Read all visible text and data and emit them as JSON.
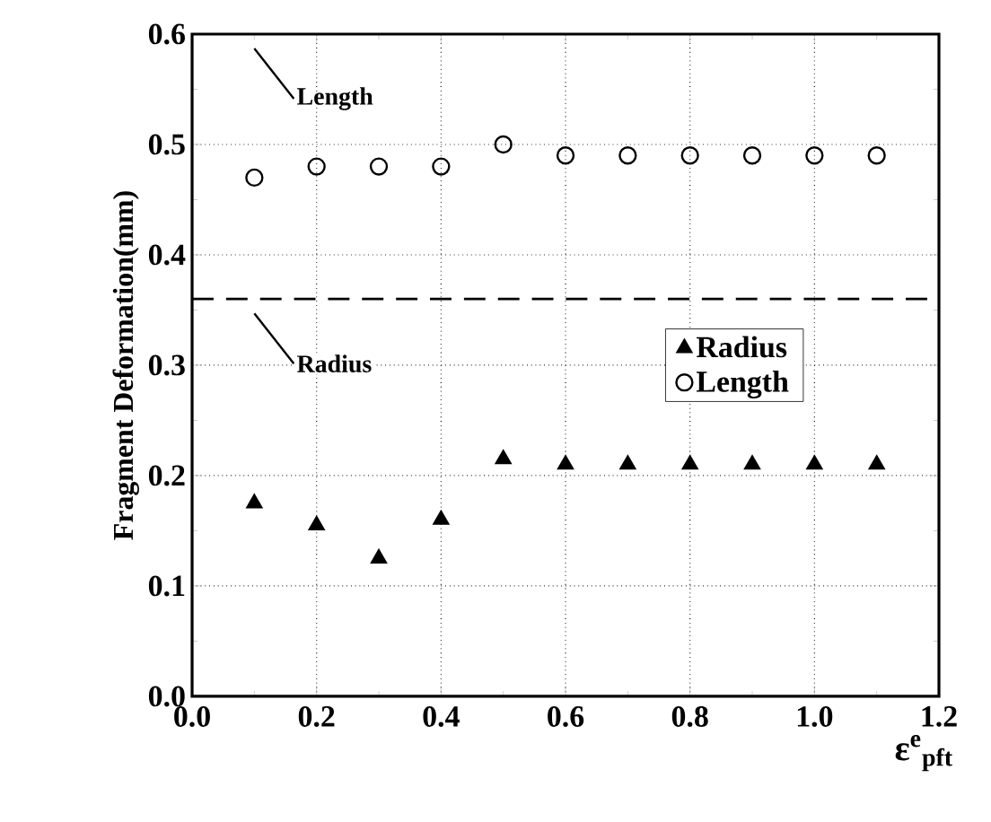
{
  "chart_data": {
    "type": "scatter",
    "xlabel": "ε$^{e}$$_{pft}$",
    "ylabel": "Fragment Deformation(mm)",
    "x": [
      0.1,
      0.2,
      0.3,
      0.4,
      0.5,
      0.6,
      0.7,
      0.8,
      0.9,
      1.0,
      1.1
    ],
    "series": [
      {
        "name": "Radius",
        "color": "#000000",
        "marker": "triangle",
        "values": [
          0.175,
          0.155,
          0.125,
          0.16,
          0.215,
          0.21,
          0.21,
          0.21,
          0.21,
          0.21,
          0.21
        ]
      },
      {
        "name": "Length",
        "color": "#000000",
        "marker": "circle",
        "values": [
          0.47,
          0.48,
          0.48,
          0.48,
          0.5,
          0.49,
          0.49,
          0.49,
          0.49,
          0.49,
          0.49
        ]
      }
    ],
    "xlim": [
      0,
      1.2
    ],
    "ylim": [
      0,
      0.6
    ],
    "xticks": [
      {
        "value": 0,
        "label": "0.0"
      },
      {
        "value": 0.2,
        "label": "0.2"
      },
      {
        "value": 0.4,
        "label": "0.4"
      },
      {
        "value": 0.6,
        "label": "0.6"
      },
      {
        "value": 0.8,
        "label": "0.8"
      },
      {
        "value": 1.0,
        "label": "1.0"
      },
      {
        "value": 1.2,
        "label": "1.2"
      }
    ],
    "yticks": [
      {
        "value": 0,
        "label": "0.0"
      },
      {
        "value": 0.1,
        "label": "0.1"
      },
      {
        "value": 0.2,
        "label": "0.2"
      },
      {
        "value": 0.3,
        "label": "0.3"
      },
      {
        "value": 0.4,
        "label": "0.4"
      },
      {
        "value": 0.5,
        "label": "0.5"
      },
      {
        "value": 0.6,
        "label": "0.6"
      }
    ],
    "ref_lines": [
      {
        "axis": "y",
        "value": 0.36,
        "label": "Radius",
        "line_style": "dashed"
      }
    ],
    "annotations": [
      "Length"
    ],
    "grid": true,
    "legend": "right"
  }
}
